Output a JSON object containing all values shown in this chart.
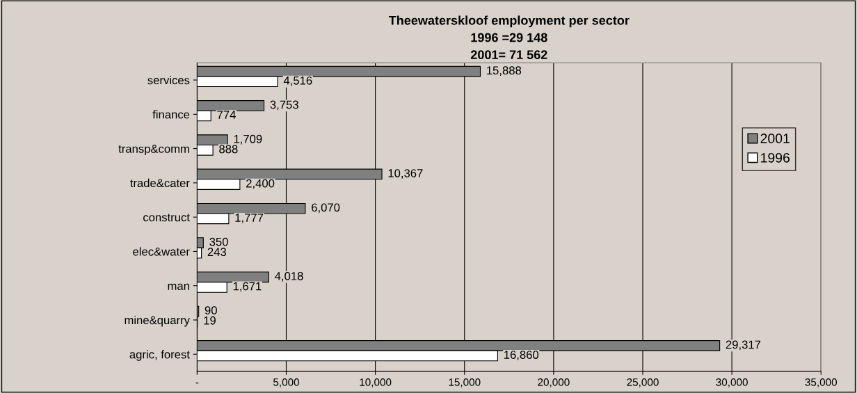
{
  "chart_data": {
    "type": "bar",
    "orientation": "horizontal",
    "title": "Theewaterskloof employment per sector\n1996 =29 148\n2001= 71 562",
    "categories": [
      "services",
      "finance",
      "transp&comm",
      "trade&cater",
      "construct",
      "elec&water",
      "man",
      "mine&quarry",
      "agric, forest"
    ],
    "series": [
      {
        "name": "2001",
        "color": "#808080",
        "values": [
          15888,
          3753,
          1709,
          10367,
          6070,
          350,
          4018,
          90,
          29317
        ],
        "value_labels": [
          "15,888",
          "3,753",
          "1,709",
          "10,367",
          "6,070",
          "350",
          "4,018",
          "90",
          "29,317"
        ]
      },
      {
        "name": "1996",
        "color": "#ffffff",
        "values": [
          4516,
          774,
          888,
          2400,
          1777,
          243,
          1671,
          19,
          16860
        ],
        "value_labels": [
          "4,516",
          "774",
          "888",
          "2,400",
          "1,777",
          "243",
          "1,671",
          "19",
          "16,860"
        ]
      }
    ],
    "xlim": [
      0,
      35000
    ],
    "xticks": [
      {
        "value": 0,
        "label": "-"
      },
      {
        "value": 5000,
        "label": "5,000"
      },
      {
        "value": 10000,
        "label": "10,000"
      },
      {
        "value": 15000,
        "label": "15,000"
      },
      {
        "value": 20000,
        "label": "20,000"
      },
      {
        "value": 25000,
        "label": "25,000"
      },
      {
        "value": 30000,
        "label": "30,000"
      },
      {
        "value": 35000,
        "label": "35,000"
      }
    ],
    "grid": "x",
    "legend": "right"
  }
}
